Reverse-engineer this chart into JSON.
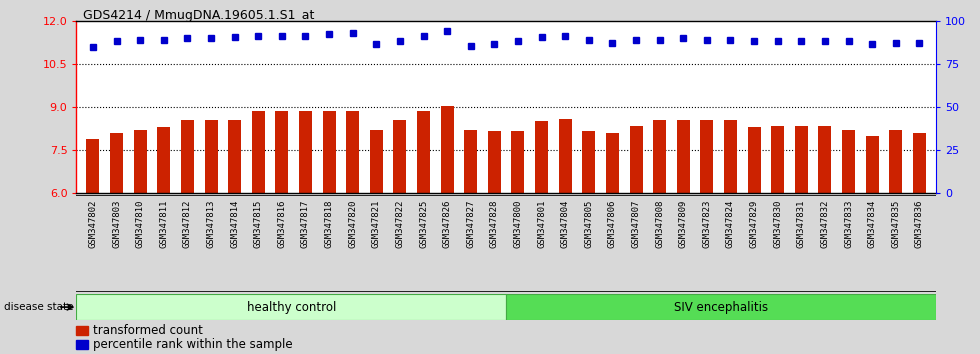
{
  "title": "GDS4214 / MmugDNA.19605.1.S1_at",
  "samples": [
    "GSM347802",
    "GSM347803",
    "GSM347810",
    "GSM347811",
    "GSM347812",
    "GSM347813",
    "GSM347814",
    "GSM347815",
    "GSM347816",
    "GSM347817",
    "GSM347818",
    "GSM347820",
    "GSM347821",
    "GSM347822",
    "GSM347825",
    "GSM347826",
    "GSM347827",
    "GSM347828",
    "GSM347800",
    "GSM347801",
    "GSM347804",
    "GSM347805",
    "GSM347806",
    "GSM347807",
    "GSM347808",
    "GSM347809",
    "GSM347823",
    "GSM347824",
    "GSM347829",
    "GSM347830",
    "GSM347831",
    "GSM347832",
    "GSM347833",
    "GSM347834",
    "GSM347835",
    "GSM347836"
  ],
  "bar_values": [
    7.9,
    8.1,
    8.2,
    8.3,
    8.55,
    8.55,
    8.55,
    8.85,
    8.85,
    8.85,
    8.85,
    8.85,
    8.2,
    8.55,
    8.85,
    9.05,
    8.2,
    8.15,
    8.15,
    8.5,
    8.6,
    8.15,
    8.1,
    8.35,
    8.55,
    8.55,
    8.55,
    8.55,
    8.3,
    8.35,
    8.35,
    8.35,
    8.2,
    8.0,
    8.2,
    8.1
  ],
  "percentile_values": [
    11.1,
    11.3,
    11.35,
    11.35,
    11.4,
    11.4,
    11.45,
    11.5,
    11.5,
    11.5,
    11.55,
    11.6,
    11.2,
    11.3,
    11.5,
    11.65,
    11.15,
    11.2,
    11.3,
    11.45,
    11.5,
    11.35,
    11.25,
    11.35,
    11.35,
    11.4,
    11.35,
    11.35,
    11.3,
    11.3,
    11.3,
    11.3,
    11.3,
    11.2,
    11.25,
    11.25
  ],
  "healthy_control_count": 18,
  "bar_color": "#cc2200",
  "percentile_color": "#0000cc",
  "ylim_left": [
    6,
    12
  ],
  "yticks_left": [
    6,
    7.5,
    9,
    10.5,
    12
  ],
  "ylim_right": [
    0,
    100
  ],
  "yticks_right": [
    0,
    25,
    50,
    75,
    100
  ],
  "healthy_label": "healthy control",
  "siv_label": "SIV encephalitis",
  "healthy_color": "#ccffcc",
  "siv_color": "#55dd55",
  "legend_bar_label": "transformed count",
  "legend_dot_label": "percentile rank within the sample",
  "disease_state_label": "disease state",
  "grid_color": "black",
  "background_color": "#d8d8d8",
  "xticklabel_bg": "#c8c8c8",
  "plot_bg": "white"
}
